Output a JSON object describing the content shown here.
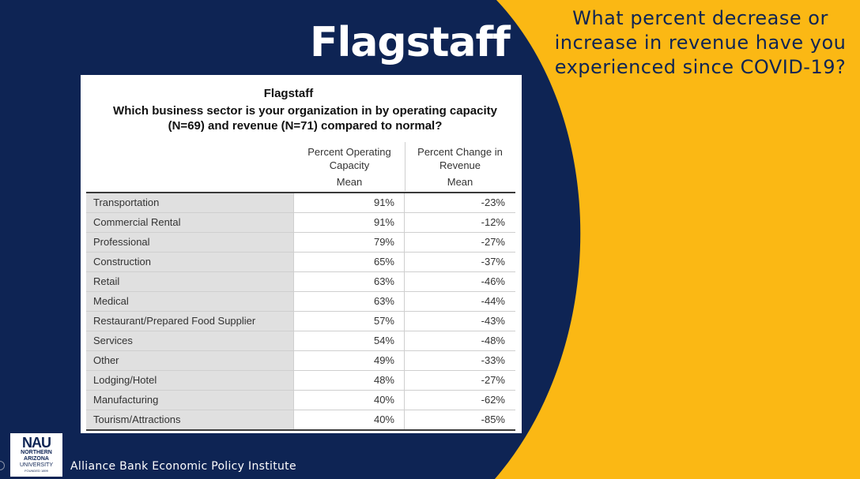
{
  "slide": {
    "title": "Flagstaff",
    "question": "What percent decrease or increase in revenue have you experienced since COVID-19?",
    "colors": {
      "navy": "#0e2454",
      "gold": "#fbb814"
    }
  },
  "table": {
    "title": "Flagstaff",
    "subtitle": "Which business sector is your organization in by operating capacity (N=69) and revenue (N=71) compared to normal?",
    "columns": [
      {
        "header": "Percent Operating Capacity",
        "stat": "Mean"
      },
      {
        "header": "Percent Change in Revenue",
        "stat": "Mean"
      }
    ],
    "rows": [
      {
        "sector": "Transportation",
        "capacity": "91%",
        "revenue": "-23%"
      },
      {
        "sector": "Commercial Rental",
        "capacity": "91%",
        "revenue": "-12%"
      },
      {
        "sector": "Professional",
        "capacity": "79%",
        "revenue": "-27%"
      },
      {
        "sector": "Construction",
        "capacity": "65%",
        "revenue": "-37%"
      },
      {
        "sector": "Retail",
        "capacity": "63%",
        "revenue": "-46%"
      },
      {
        "sector": "Medical",
        "capacity": "63%",
        "revenue": "-44%"
      },
      {
        "sector": "Restaurant/Prepared Food Supplier",
        "capacity": "57%",
        "revenue": "-43%"
      },
      {
        "sector": "Services",
        "capacity": "54%",
        "revenue": "-48%"
      },
      {
        "sector": "Other",
        "capacity": "49%",
        "revenue": "-33%"
      },
      {
        "sector": "Lodging/Hotel",
        "capacity": "48%",
        "revenue": "-27%"
      },
      {
        "sector": "Manufacturing",
        "capacity": "40%",
        "revenue": "-62%"
      },
      {
        "sector": "Tourism/Attractions",
        "capacity": "40%",
        "revenue": "-85%"
      }
    ]
  },
  "logo": {
    "mark": "NAU",
    "line1": "NORTHERN",
    "line2": "ARIZONA",
    "line3": "UNIVERSITY",
    "line4": "FOUNDED 1899"
  },
  "footer": {
    "text": "Alliance Bank Economic Policy Institute"
  }
}
